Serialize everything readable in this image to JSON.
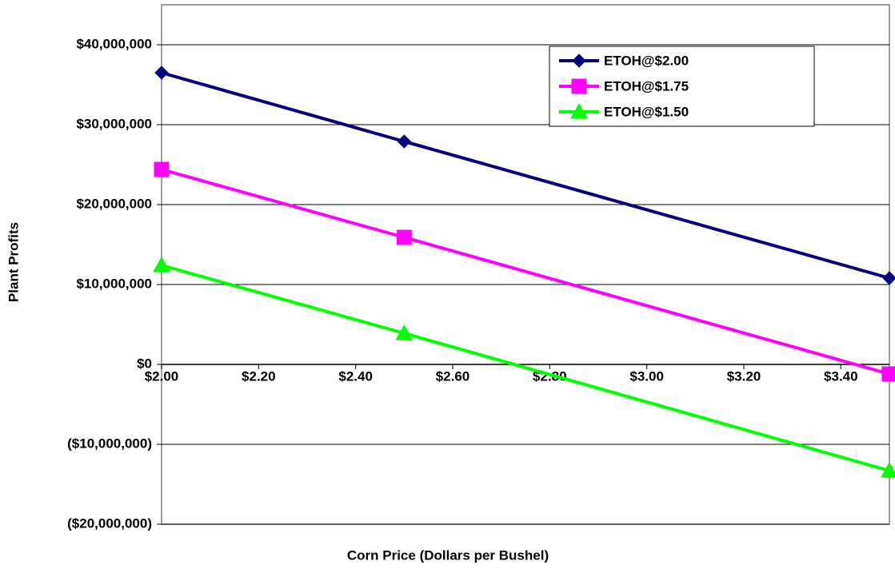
{
  "chart_data": {
    "type": "line",
    "x_label": "Corn Price (Dollars per Bushel)",
    "y_label": "Plant Profits",
    "x": [
      2.0,
      2.5,
      3.5
    ],
    "series": [
      {
        "name": "ETOH@$2.00",
        "color": "#000080",
        "marker": "diamond",
        "values": [
          36500000,
          27900000,
          10800000
        ]
      },
      {
        "name": "ETOH@$1.75",
        "color": "#ff00ff",
        "marker": "square",
        "values": [
          24400000,
          15900000,
          -1200000
        ]
      },
      {
        "name": "ETOH@$1.50",
        "color": "#00ff00",
        "marker": "triangle",
        "values": [
          12400000,
          3900000,
          -13300000
        ]
      }
    ],
    "xlim": [
      2.0,
      3.5
    ],
    "xticks": [
      {
        "value": 2.0,
        "label": "$2.00"
      },
      {
        "value": 2.2,
        "label": "$2.20"
      },
      {
        "value": 2.4,
        "label": "$2.40"
      },
      {
        "value": 2.6,
        "label": "$2.60"
      },
      {
        "value": 2.8,
        "label": "$2.80"
      },
      {
        "value": 3.0,
        "label": "$3.00"
      },
      {
        "value": 3.2,
        "label": "$3.20"
      },
      {
        "value": 3.4,
        "label": "$3.40"
      }
    ],
    "ylim": [
      -20000000,
      45000000
    ],
    "yticks": [
      {
        "value": -20000000,
        "label": "($20,000,000)"
      },
      {
        "value": -10000000,
        "label": "($10,000,000)"
      },
      {
        "value": 0,
        "label": "$0"
      },
      {
        "value": 10000000,
        "label": "$10,000,000"
      },
      {
        "value": 20000000,
        "label": "$20,000,000"
      },
      {
        "value": 30000000,
        "label": "$30,000,000"
      },
      {
        "value": 40000000,
        "label": "$40,000,000"
      }
    ],
    "grid": true,
    "legend": "upper right"
  }
}
